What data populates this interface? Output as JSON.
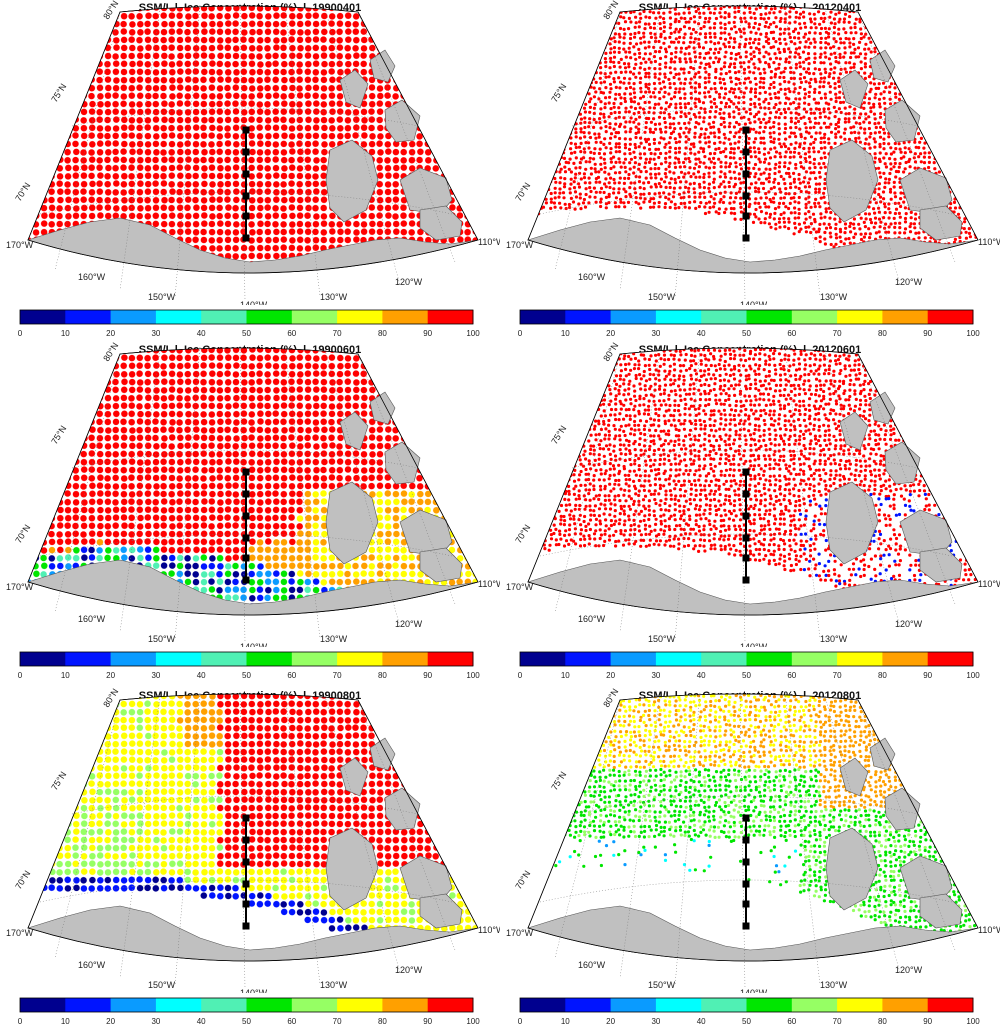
{
  "colorbar": {
    "colors": [
      "#00008f",
      "#0014ff",
      "#0a9bff",
      "#00ffff",
      "#50f0b4",
      "#00e600",
      "#96ff64",
      "#ffff00",
      "#ffa000",
      "#ff0000"
    ],
    "ticks": [
      "0",
      "10",
      "20",
      "30",
      "40",
      "50",
      "60",
      "70",
      "80",
      "90",
      "100"
    ]
  },
  "map_labels": {
    "lat": [
      "80°N",
      "75°N",
      "70°N"
    ],
    "lon": [
      "170°W",
      "160°W",
      "150°W",
      "140°W",
      "130°W",
      "120°W",
      "110°W"
    ]
  },
  "colors": {
    "land": "#c0c0c0",
    "land_stroke": "#555555",
    "ocean_open": "#ffffff",
    "transect": "#000000"
  },
  "panels": [
    {
      "title": "SSM/I  l  Ice Concentration (%)  l  19900401",
      "sensor": "SSM/I",
      "product": "Ice Concentration (%)",
      "date": "19900401",
      "dominant_class": "90-100",
      "notes": "sea ice near 100% everywhere"
    },
    {
      "title": "SSM/I  l  Ice Concentration (%)  l  20120401",
      "sensor": "SSM/I",
      "product": "Ice Concentration (%)",
      "date": "20120401",
      "dominant_class": "90-100",
      "notes": "sea ice near 100%, thin open water strip along coast"
    },
    {
      "title": "SSM/I  l  Ice Concentration (%)  l  19900601",
      "sensor": "SSM/I",
      "product": "Ice Concentration (%)",
      "date": "19900601",
      "dominant_class": "90-100",
      "notes": "lower concentrations along the coast and east side"
    },
    {
      "title": "SSM/I  l  Ice Concentration (%)  l  20120601",
      "sensor": "SSM/I",
      "product": "Ice Concentration (%)",
      "date": "20120601",
      "dominant_class": "90-100",
      "notes": "open water opening along coast and near 130W"
    },
    {
      "title": "SSM/I  l  Ice Concentration (%)  l  19900801",
      "sensor": "SSM/I",
      "product": "Ice Concentration (%)",
      "date": "19900801",
      "dominant_class": "70-80",
      "notes": "yellow/orange pack, red in north, open water near coast"
    },
    {
      "title": "SSM/I  l  Ice Concentration (%)  l  20120801",
      "sensor": "SSM/I",
      "product": "Ice Concentration (%)",
      "date": "20120801",
      "dominant_class": "50-60",
      "notes": "green/orange pack in north, large open water region in south"
    }
  ]
}
